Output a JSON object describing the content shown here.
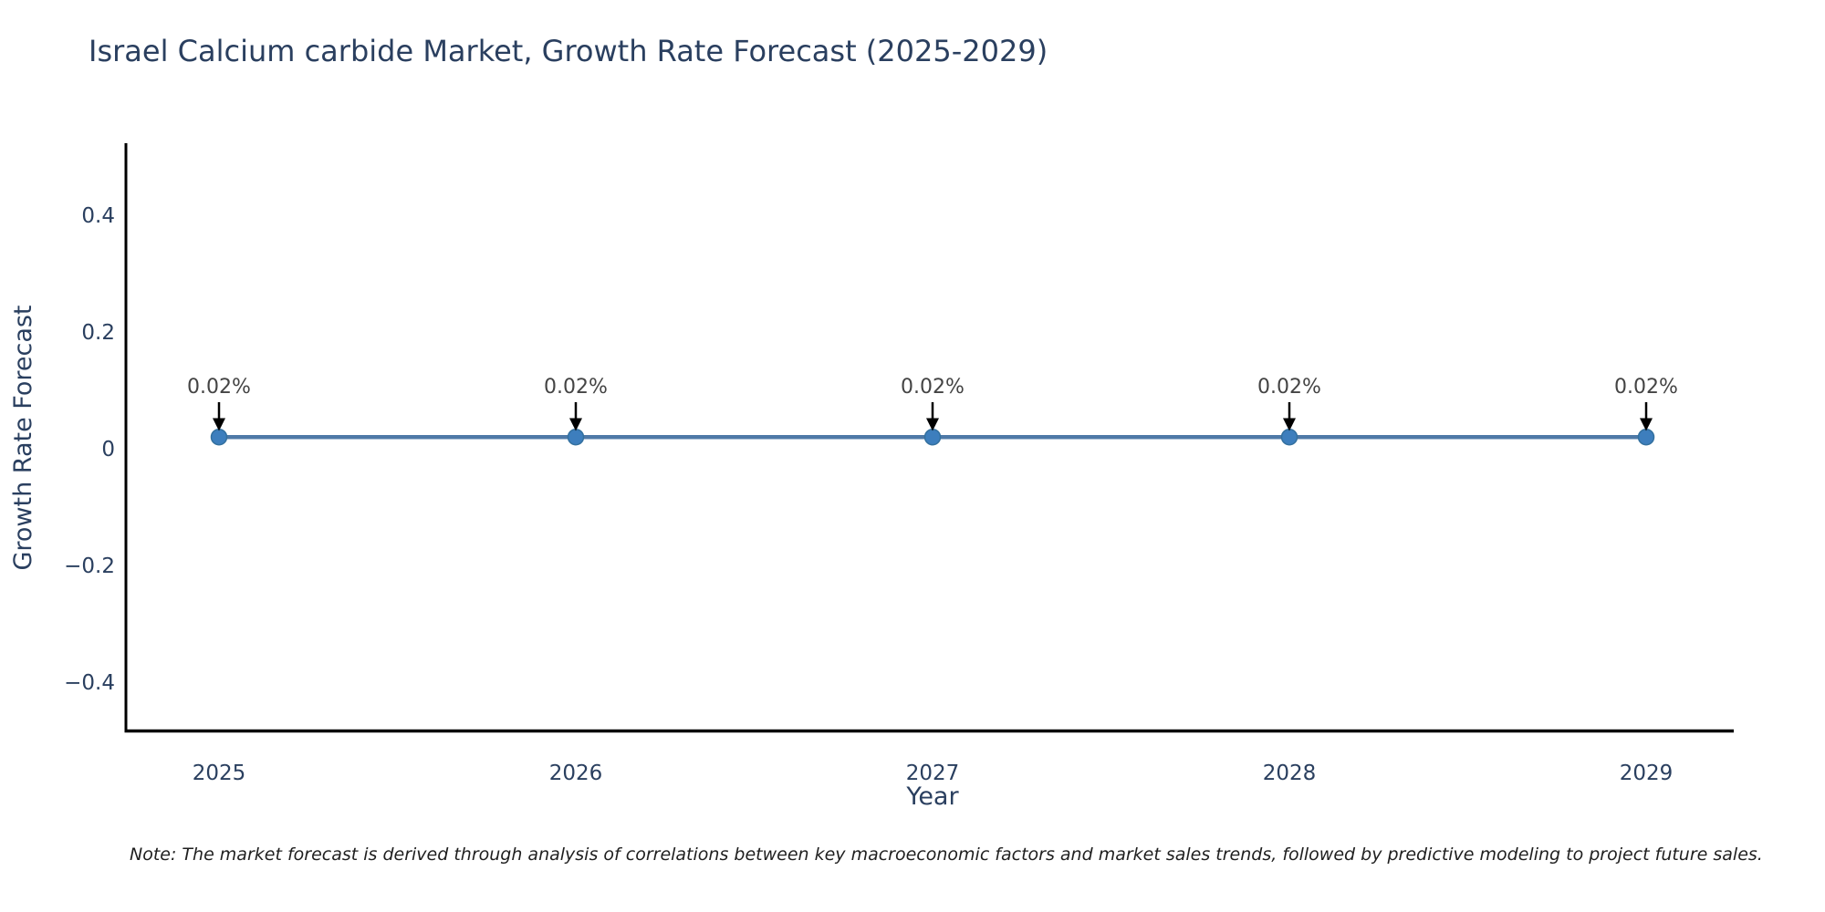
{
  "page": {
    "background": "#ffffff"
  },
  "chart_data": {
    "type": "line",
    "title": "Israel Calcium carbide Market, Growth Rate Forecast (2025-2029)",
    "xlabel": "Year",
    "ylabel": "Growth Rate Forecast",
    "x": [
      2025,
      2026,
      2027,
      2028,
      2029
    ],
    "series": [
      {
        "name": "Growth Rate Forecast",
        "values": [
          0.02,
          0.02,
          0.02,
          0.02,
          0.02
        ]
      }
    ],
    "point_labels": [
      "0.02%",
      "0.02%",
      "0.02%",
      "0.02%",
      "0.02%"
    ],
    "xtick_labels": [
      "2025",
      "2026",
      "2027",
      "2028",
      "2029"
    ],
    "ytick_values": [
      -0.4,
      -0.2,
      0,
      0.2,
      0.4
    ],
    "ytick_labels": [
      "−0.4",
      "−0.2",
      "0",
      "0.2",
      "0.4"
    ],
    "ylim": [
      -0.48,
      0.53
    ],
    "grid": false,
    "legend_position": "none",
    "colors": {
      "line": "#4e79a7",
      "marker": "#3d7ebd",
      "marker_edge": "#33709f",
      "axis": "#000000",
      "title_text": "#2a3f5f",
      "axis_text": "#2a3f5f",
      "annotation_text": "#444444",
      "arrow": "#000000"
    },
    "note": "Note: The market forecast is derived through analysis of correlations between key macroeconomic factors and market sales trends, followed by predictive modeling to project future sales."
  }
}
